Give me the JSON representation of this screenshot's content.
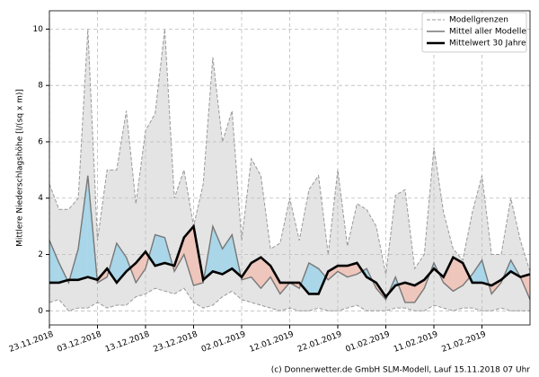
{
  "chart_data": {
    "type": "ensemble",
    "y_label": "Mittlere Niederschlagshöhe [l/(sq x m)]",
    "footer": "(c) Donnerwetter.de GmbH SLM-Modell, Lauf 15.11.2018 07 Uhr",
    "x": [
      "23.11.2018",
      "25.11.2018",
      "27.11.2018",
      "29.11.2018",
      "01.12.2018",
      "03.12.2018",
      "05.12.2018",
      "07.12.2018",
      "09.12.2018",
      "11.12.2018",
      "13.12.2018",
      "15.12.2018",
      "17.12.2018",
      "19.12.2018",
      "21.12.2018",
      "23.12.2018",
      "25.12.2018",
      "27.12.2018",
      "29.12.2018",
      "31.12.2018",
      "02.01.2019",
      "04.01.2019",
      "06.01.2019",
      "08.01.2019",
      "10.01.2019",
      "12.01.2019",
      "14.01.2019",
      "16.01.2019",
      "18.01.2019",
      "20.01.2019",
      "22.01.2019",
      "24.01.2019",
      "26.01.2019",
      "28.01.2019",
      "30.01.2019",
      "01.02.2019",
      "03.02.2019",
      "05.02.2019",
      "07.02.2019",
      "09.02.2019",
      "11.02.2019",
      "13.02.2019",
      "15.02.2019",
      "17.02.2019",
      "19.02.2019",
      "21.02.2019",
      "23.02.2019",
      "25.02.2019",
      "27.02.2019",
      "01.03.2019",
      "03.03.2019"
    ],
    "xticks": [
      "23.11.2018",
      "03.12.2018",
      "13.12.2018",
      "23.12.2018",
      "02.01.2019",
      "12.01.2019",
      "22.01.2019",
      "01.02.2019",
      "11.02.2019",
      "21.02.2019"
    ],
    "band": {
      "name": "Modellgrenzen",
      "color": "#999999",
      "fill": "#e4e4e4",
      "upper": [
        4.5,
        3.6,
        3.6,
        4.0,
        10.0,
        2.5,
        5.0,
        5.0,
        7.1,
        3.8,
        6.4,
        7.0,
        10.0,
        4.0,
        5.0,
        3.0,
        4.5,
        9.0,
        6.0,
        7.1,
        2.5,
        5.4,
        4.8,
        2.2,
        2.4,
        4.0,
        2.5,
        4.3,
        4.8,
        2.0,
        5.0,
        2.3,
        3.8,
        3.6,
        3.0,
        1.3,
        4.1,
        4.3,
        1.5,
        2.0,
        5.8,
        3.5,
        2.2,
        1.8,
        3.5,
        4.8,
        2.0,
        2.0,
        4.0,
        2.5,
        1.4
      ],
      "lower": [
        0.3,
        0.4,
        0.0,
        0.1,
        0.1,
        0.3,
        0.1,
        0.2,
        0.2,
        0.5,
        0.6,
        0.8,
        0.7,
        0.6,
        0.8,
        0.3,
        0.1,
        0.2,
        0.5,
        0.7,
        0.4,
        0.3,
        0.2,
        0.1,
        0.0,
        0.1,
        0.0,
        0.0,
        0.1,
        0.0,
        0.0,
        0.1,
        0.2,
        0.0,
        0.0,
        0.0,
        0.1,
        0.1,
        0.0,
        0.0,
        0.2,
        0.1,
        0.0,
        0.1,
        0.1,
        0.0,
        0.0,
        0.1,
        0.0,
        0.0,
        0.0
      ]
    },
    "mean": {
      "name": "Mittel aller Modelle",
      "color": "#777777",
      "values": [
        2.5,
        1.7,
        1.0,
        2.2,
        4.8,
        1.0,
        1.2,
        2.4,
        1.9,
        1.0,
        1.5,
        2.7,
        2.6,
        1.4,
        2.0,
        0.9,
        1.0,
        3.0,
        2.2,
        2.7,
        1.1,
        1.2,
        0.8,
        1.2,
        0.6,
        1.0,
        0.8,
        1.7,
        1.5,
        1.1,
        1.4,
        1.2,
        1.3,
        1.5,
        0.8,
        0.4,
        1.2,
        0.3,
        0.3,
        0.8,
        1.7,
        1.0,
        0.7,
        0.9,
        1.3,
        1.8,
        0.6,
        1.0,
        1.8,
        1.2,
        0.4
      ]
    },
    "climate": {
      "name": "Mittelwert 30 Jahre",
      "color": "#000000",
      "values": [
        1.0,
        1.0,
        1.1,
        1.1,
        1.2,
        1.1,
        1.5,
        1.0,
        1.4,
        1.7,
        2.1,
        1.6,
        1.7,
        1.6,
        2.6,
        3.0,
        1.1,
        1.4,
        1.3,
        1.5,
        1.2,
        1.7,
        1.9,
        1.6,
        1.0,
        1.0,
        1.0,
        0.6,
        0.6,
        1.4,
        1.6,
        1.6,
        1.7,
        1.2,
        1.0,
        0.5,
        0.9,
        1.0,
        0.9,
        1.1,
        1.5,
        1.2,
        1.9,
        1.7,
        1.0,
        1.0,
        0.9,
        1.1,
        1.4,
        1.2,
        1.3
      ]
    },
    "above_color": "#a9d6e8",
    "below_color": "#eec6bc",
    "ylim": [
      -0.5,
      10.65
    ],
    "yticks": [
      0,
      2,
      4,
      6,
      8,
      10
    ],
    "grid": true,
    "legend": "upper right"
  }
}
